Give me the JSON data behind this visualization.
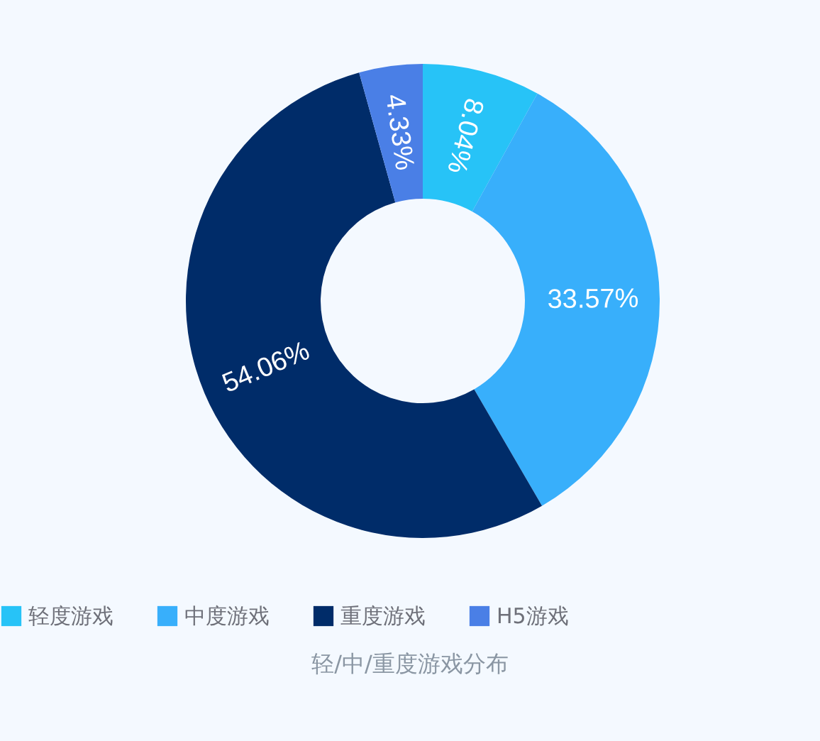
{
  "chart_data": {
    "type": "donut",
    "title": "轻/中/重度游戏分布",
    "categories": [
      "轻度游戏",
      "中度游戏",
      "重度游戏",
      "H5游戏"
    ],
    "values": [
      8.04,
      33.57,
      54.06,
      4.33
    ],
    "colors": [
      "#27c3f7",
      "#38affb",
      "#002c69",
      "#4a7fe6"
    ],
    "value_labels": [
      "8.04%",
      "33.57%",
      "54.06%",
      "4.33%"
    ],
    "legend": "bottom"
  }
}
